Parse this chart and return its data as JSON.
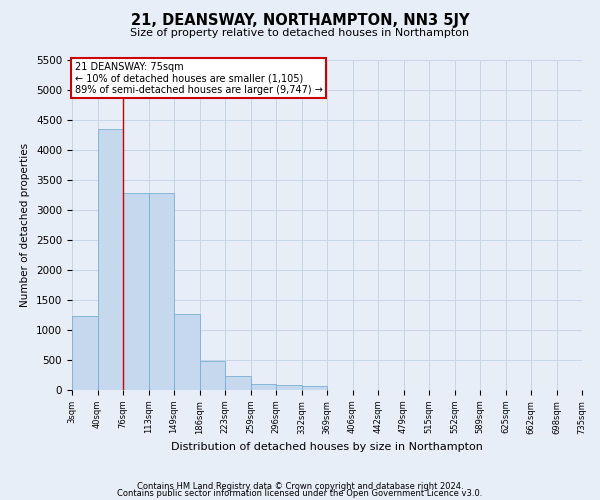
{
  "title": "21, DEANSWAY, NORTHAMPTON, NN3 5JY",
  "subtitle": "Size of property relative to detached houses in Northampton",
  "xlabel": "Distribution of detached houses by size in Northampton",
  "ylabel": "Number of detached properties",
  "footer_line1": "Contains HM Land Registry data © Crown copyright and database right 2024.",
  "footer_line2": "Contains public sector information licensed under the Open Government Licence v3.0.",
  "bar_values": [
    1230,
    4350,
    3280,
    3280,
    1270,
    490,
    230,
    100,
    90,
    60,
    0,
    0,
    0,
    0,
    0,
    0,
    0,
    0,
    0,
    0
  ],
  "x_labels": [
    "3sqm",
    "40sqm",
    "76sqm",
    "113sqm",
    "149sqm",
    "186sqm",
    "223sqm",
    "259sqm",
    "296sqm",
    "332sqm",
    "369sqm",
    "406sqm",
    "442sqm",
    "479sqm",
    "515sqm",
    "552sqm",
    "589sqm",
    "625sqm",
    "662sqm",
    "698sqm",
    "735sqm"
  ],
  "bar_color": "#c5d8ed",
  "bar_edge_color": "#7aafd4",
  "grid_color": "#c8d4e8",
  "bg_color": "#e8eef8",
  "annotation_text": "21 DEANSWAY: 75sqm\n← 10% of detached houses are smaller (1,105)\n89% of semi-detached houses are larger (9,747) →",
  "annotation_box_color": "#ffffff",
  "annotation_box_edge": "#cc0000",
  "vline_x": 2,
  "vline_color": "#cc0000",
  "ylim": [
    0,
    5500
  ],
  "yticks": [
    0,
    500,
    1000,
    1500,
    2000,
    2500,
    3000,
    3500,
    4000,
    4500,
    5000,
    5500
  ]
}
